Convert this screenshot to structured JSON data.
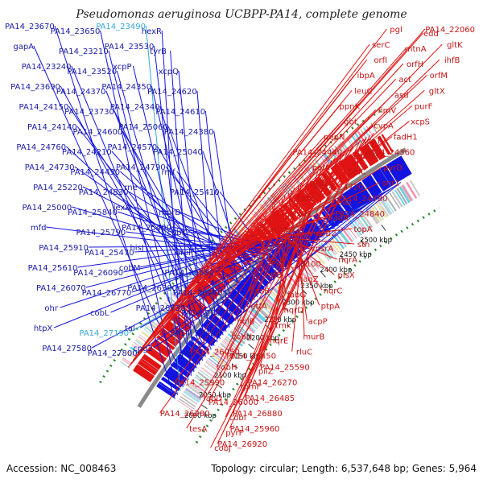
{
  "title": "Pseudomonas aeruginosa UCBPP-PA14, complete genome",
  "footer": {
    "accession": "Accession: NC_008463",
    "stats": "Topology: circular; Length: 6,537,648 bp; Genes: 5,964"
  },
  "colors": {
    "minus_strand": "#1414e0",
    "plus_strand": "#e01414",
    "minus_label": "#1a1aa8",
    "plus_label": "#c41414",
    "highlight_label": "#35a8d8",
    "backbone": "#8a8a8a",
    "gc_dots": "#2e8b2e"
  },
  "ticks": [
    "2000 kbp",
    "2050 kbp",
    "2100 kbp",
    "2150 kbp",
    "2200 kbp",
    "2250 kbp",
    "2300 kbp",
    "2350 kbp",
    "2400 kbp",
    "2450 kbp",
    "2500 kbp"
  ],
  "minus_labels": [
    "PA14_23670",
    "PA14_23650",
    "PA14_23490",
    "hexR",
    "gapA",
    "PA14_23210",
    "PA14_23530",
    "tyrB",
    "PA14_23240",
    "PA14_23520",
    "xcpP",
    "xcpQ",
    "PA14_23690",
    "PA14_24370",
    "PA14_24350",
    "PA14_24620",
    "PA14_24150",
    "PA14_23730",
    "PA14_24340",
    "PA14_24610",
    "PA14_24140",
    "PA14_24600",
    "PA14_25060",
    "PA14_24380",
    "PA14_24760",
    "PA14_24210",
    "PA14_24570",
    "PA14_25040",
    "PA14_24730",
    "PA14_24430",
    "PA14_24790",
    "rmf",
    "PA14_25220",
    "PA14_24830",
    "rne",
    "PA14_25410",
    "PA14_25000",
    "PA14_25840",
    "lexA",
    "morB",
    "mfd",
    "PA14_25790",
    "PA14_25400",
    "cobK",
    "PA14_25910",
    "PA14_25470",
    "hisJ",
    "aroF",
    "PA14_25610",
    "PA14_26090",
    "cobM",
    "PA14_26650",
    "PA14_26070",
    "PA14_26770",
    "PA14_26300",
    "PA14_26640",
    "ohr",
    "cobL",
    "PA14_26730",
    "PA14_26870",
    "htpX",
    "PA14_27190",
    "tal",
    "PA14_27410",
    "PA14_27580",
    "PA14_27800",
    "cpg2",
    "eco"
  ],
  "plus_labels": [
    "PA14_22060",
    "edd",
    "pgl",
    "gltK",
    "mtnA",
    "serC",
    "ihfB",
    "orfH",
    "orfI",
    "orfM",
    "act",
    "ibpA",
    "gltX",
    "asd",
    "leuC",
    "purF",
    "fimV",
    "ppnK",
    "xcpS",
    "cvpA",
    "gbt",
    "fadH1",
    "xcpT",
    "pepN",
    "PA14_24360",
    "gdhB",
    "PA14_24440",
    "pyrD",
    "pelC",
    "pelA",
    "snr1",
    "PA14_24720",
    "pelB",
    "PA14_24780",
    "pelD",
    "fadB",
    "PA14_24840",
    "fadA",
    "aroP1",
    "topA",
    "moaB2",
    "moeA2",
    "sth",
    "psrA",
    "engB",
    "nqrA",
    "PA14_25100",
    "lpxK",
    "plsX",
    "nagZ",
    "etfB",
    "nqrC",
    "fabG",
    "kdsB",
    "ptpA",
    "nqrD",
    "etfA",
    "acpP",
    "tmk",
    "holB",
    "murB",
    "nqrE",
    "cobN",
    "rluC",
    "PA14_26450",
    "PA14_26050",
    "PA14_25590",
    "pilZ",
    "cobH",
    "PA14_26270",
    "rpmF",
    "PA14_25990",
    "PA14_26485",
    "PA14_26000",
    "fabD",
    "PA14_26880",
    "cobI",
    "PA14_26280",
    "PA14_25960",
    "pyrF",
    "tesA",
    "PA14_26920",
    "cobJ"
  ]
}
